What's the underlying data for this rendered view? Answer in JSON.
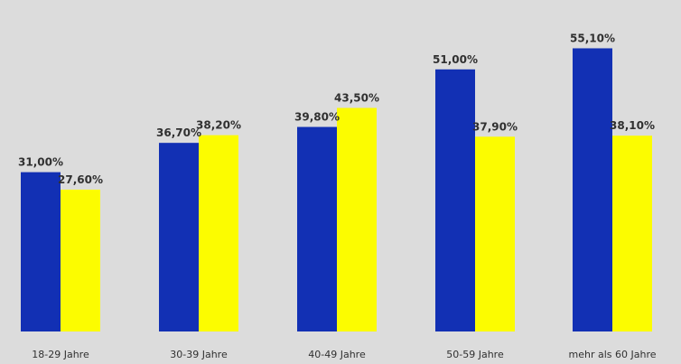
{
  "chart_data": {
    "type": "bar",
    "title": "",
    "xlabel": "",
    "ylabel": "",
    "ylim": [
      0,
      60
    ],
    "grid": false,
    "categories": [
      "18-29 Jahre",
      "30-39 Jahre",
      "40-49 Jahre",
      "50-59 Jahre",
      "mehr als 60 Jahre"
    ],
    "series": [
      {
        "values": [
          31.0,
          36.7,
          39.8,
          51.0,
          55.1
        ],
        "labels": [
          "31,00%",
          "36,70%",
          "39,80%",
          "51,00%",
          "55,10%"
        ]
      },
      {
        "values": [
          27.6,
          38.2,
          43.5,
          37.9,
          38.1
        ],
        "labels": [
          "27,60%",
          "38,20%",
          "43,50%",
          "37,90%",
          "38,10%"
        ]
      }
    ]
  },
  "colors": {
    "series": [
      "#1230b4",
      "#fcfc00"
    ],
    "background": "#dcdcdc",
    "text": "#303030"
  }
}
